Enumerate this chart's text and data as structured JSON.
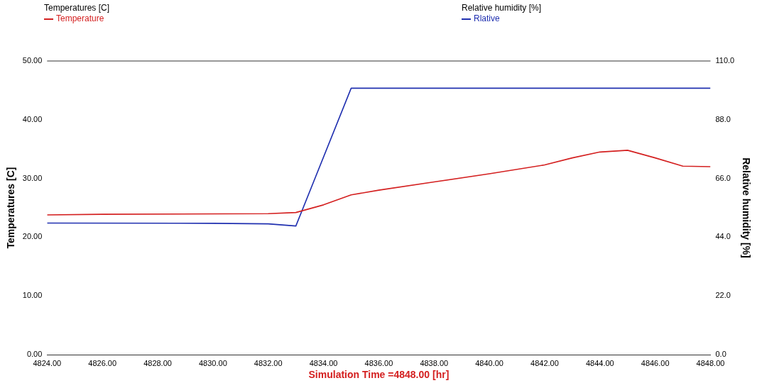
{
  "chart_data": {
    "type": "line",
    "xlabel": "Simulation Time =4848.00 [hr]",
    "ylabel": "Temperatures [C]",
    "y2label": "Relative humidity [%]",
    "annotations": [
      "Temperatures [C]",
      "Relative humidity [%]"
    ],
    "x": [
      4824,
      4826,
      4832,
      4833,
      4834,
      4835,
      4836,
      4838,
      4840,
      4842,
      4843,
      4844,
      4845,
      4846,
      4847,
      4848
    ],
    "series": [
      {
        "name": "Temperature",
        "color": "#d42020",
        "values": [
          23.8,
          23.9,
          24.0,
          24.2,
          25.5,
          27.2,
          28.0,
          29.4,
          30.8,
          32.3,
          33.5,
          34.5,
          34.8,
          33.5,
          32.1,
          32.0
        ]
      },
      {
        "name": "Rlative",
        "color": "#2030b0",
        "axis": "y2",
        "x": [
          4824,
          4830,
          4832,
          4833,
          4835,
          4848
        ],
        "values": [
          49.3,
          49.2,
          49.0,
          48.2,
          99.8,
          99.8
        ]
      }
    ],
    "xlim": [
      4824,
      4848
    ],
    "xticks": [
      {
        "value": 4824,
        "label": "4824.00"
      },
      {
        "value": 4826,
        "label": "4826.00"
      },
      {
        "value": 4828,
        "label": "4828.00"
      },
      {
        "value": 4830,
        "label": "4830.00"
      },
      {
        "value": 4832,
        "label": "4832.00"
      },
      {
        "value": 4834,
        "label": "4834.00"
      },
      {
        "value": 4836,
        "label": "4836.00"
      },
      {
        "value": 4838,
        "label": "4838.00"
      },
      {
        "value": 4840,
        "label": "4840.00"
      },
      {
        "value": 4842,
        "label": "4842.00"
      },
      {
        "value": 4844,
        "label": "4844.00"
      },
      {
        "value": 4846,
        "label": "4846.00"
      },
      {
        "value": 4848,
        "label": "4848.00"
      }
    ],
    "ylim": [
      0,
      50
    ],
    "yticks": [
      {
        "value": 0,
        "label": "0.00"
      },
      {
        "value": 10,
        "label": "10.00"
      },
      {
        "value": 20,
        "label": "20.00"
      },
      {
        "value": 30,
        "label": "30.00"
      },
      {
        "value": 40,
        "label": "40.00"
      },
      {
        "value": 50,
        "label": "50.00"
      }
    ],
    "y2lim": [
      0,
      110
    ],
    "y2ticks": [
      {
        "value": 0,
        "label": "0.0"
      },
      {
        "value": 22,
        "label": "22.0"
      },
      {
        "value": 44,
        "label": "44.0"
      },
      {
        "value": 66,
        "label": "66.0"
      },
      {
        "value": 88,
        "label": "88.0"
      },
      {
        "value": 110,
        "label": "110.0"
      }
    ],
    "legend": "top",
    "marker": "none",
    "line_style": "solid"
  }
}
